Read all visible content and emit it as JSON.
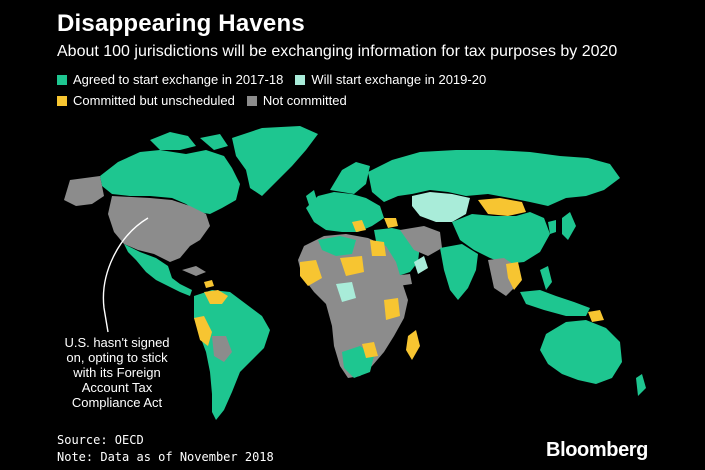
{
  "title": "Disappearing Havens",
  "subtitle": "About 100 jurisdictions will be exchanging information for tax purposes by 2020",
  "legend": [
    {
      "label": "Agreed to start exchange in 2017-18",
      "color": "#1ec690"
    },
    {
      "label": "Will start exchange in 2019-20",
      "color": "#a9ecd9"
    },
    {
      "label": "Committed but unscheduled",
      "color": "#f7c531"
    },
    {
      "label": "Not committed",
      "color": "#8c8c8c"
    }
  ],
  "annotation": "U.S. hasn't signed on, opting to stick with its Foreign Account Tax Compliance Act",
  "source": "Source: OECD",
  "note": "Note: Data as of November 2018",
  "brand": "Bloomberg"
}
